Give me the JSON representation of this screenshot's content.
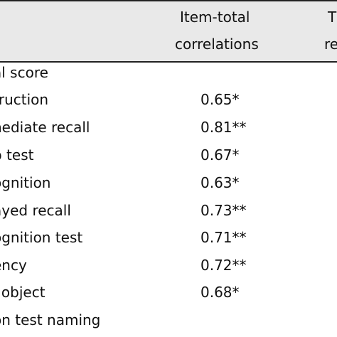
{
  "table": {
    "columns": [
      {
        "line1": "Item-total",
        "line2": "correlations"
      },
      {
        "line1": "T",
        "line2": "re"
      }
    ],
    "rows": [
      {
        "label": "al score",
        "value": ""
      },
      {
        "label": "truction",
        "value": "0.65*"
      },
      {
        "label": "nediate recall",
        "value": "0.81**"
      },
      {
        "label": "p test",
        "value": "0.67*"
      },
      {
        "label": "ognition",
        "value": "0.63*"
      },
      {
        "label": "ayed recall",
        "value": "0.73**"
      },
      {
        "label": "ognition test",
        "value": "0.71**"
      },
      {
        "label": "ency",
        "value": "0.72**"
      },
      {
        "label": "l object",
        "value": "0.68*"
      },
      {
        "label": "on test naming",
        "value": ""
      }
    ]
  }
}
